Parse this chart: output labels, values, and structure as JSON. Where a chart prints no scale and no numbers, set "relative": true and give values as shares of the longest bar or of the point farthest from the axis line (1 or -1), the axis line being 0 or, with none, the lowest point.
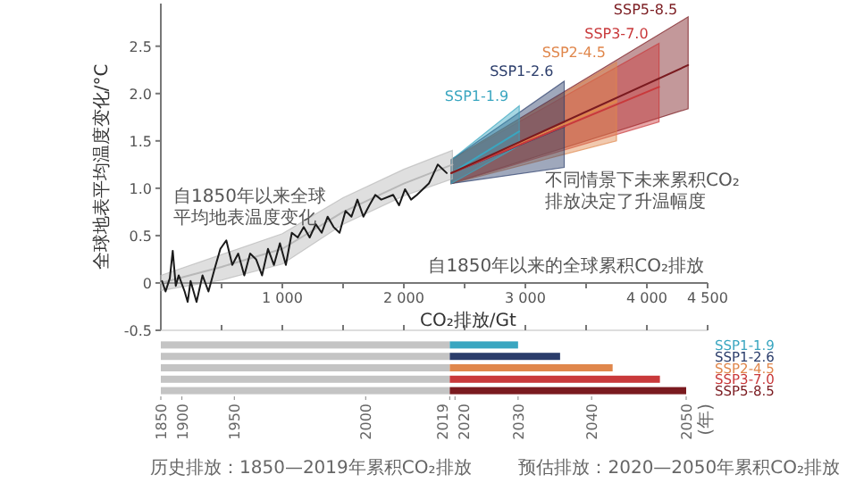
{
  "chart_data": [
    {
      "type": "line",
      "xlabel": "CO₂排放/Gt",
      "ylabel": "全球地表平均温度变化/°C",
      "xlim": [
        0,
        4500
      ],
      "ylim": [
        -0.5,
        2.95
      ],
      "xticks": [
        {
          "value": 500,
          "label": null
        },
        {
          "value": 1000,
          "label": "1 000"
        },
        {
          "value": 1500,
          "label": null
        },
        {
          "value": 2000,
          "label": "2 000"
        },
        {
          "value": 2500,
          "label": null
        },
        {
          "value": 3000,
          "label": "3 000"
        },
        {
          "value": 3500,
          "label": null
        },
        {
          "value": 4000,
          "label": "4 000"
        },
        {
          "value": 4500,
          "label": "4 500"
        }
      ],
      "yticks": [
        {
          "value": -0.5,
          "label": "-0.5"
        },
        0,
        {
          "value": 0.5,
          "label": "0.5"
        },
        {
          "value": 1,
          "label": "1.0"
        },
        {
          "value": 1.5,
          "label": "1.5"
        },
        {
          "value": 2,
          "label": "2.0"
        },
        {
          "value": 2.5,
          "label": "2.5"
        }
      ],
      "grid": false,
      "legend": false,
      "annotations": [
        "自1850年以来全球",
        "平均地表温度变化",
        "不同情景下未来累积CO₂",
        "排放决定了升温幅度",
        "自1850年以来的全球累积CO₂排放"
      ],
      "series": [
        {
          "color": "#b8b8b8",
          "x": [
            0,
            500,
            1000,
            1500,
            2000,
            2400
          ],
          "values": [
            0,
            0.17,
            0.36,
            0.75,
            1.05,
            1.25
          ],
          "lower": [
            -0.08,
            0.03,
            0.2,
            0.62,
            0.92,
            1.1
          ],
          "upper": [
            0.08,
            0.3,
            0.52,
            0.9,
            1.2,
            1.4
          ]
        },
        {
          "color": "#1a1a1a",
          "x": [
            10,
            39,
            74,
            98,
            123,
            147,
            196,
            221,
            245,
            294,
            343,
            392,
            441,
            490,
            539,
            588,
            637,
            687,
            735,
            784,
            833,
            882,
            931,
            980,
            1029,
            1078,
            1127,
            1176,
            1225,
            1275,
            1324,
            1373,
            1422,
            1471,
            1520,
            1569,
            1618,
            1667,
            1716,
            1765,
            1814,
            1912,
            1961,
            2010,
            2059,
            2108,
            2206,
            2279,
            2353
          ],
          "values": [
            0.02,
            -0.09,
            0.05,
            0.34,
            -0.03,
            0.08,
            -0.09,
            -0.2,
            0.02,
            -0.2,
            0.08,
            -0.09,
            0.14,
            0.36,
            0.45,
            0.19,
            0.31,
            0.08,
            0.31,
            0.25,
            0.08,
            0.36,
            0.19,
            0.42,
            0.19,
            0.53,
            0.48,
            0.59,
            0.48,
            0.62,
            0.53,
            0.7,
            0.59,
            0.53,
            0.76,
            0.7,
            0.88,
            0.7,
            0.82,
            0.93,
            0.88,
            0.93,
            0.82,
            0.99,
            0.88,
            0.93,
            1.05,
            1.25,
            1.16
          ]
        },
        {
          "name": "SSP1-1.9",
          "color": "#3aa6c0",
          "x": [
            2390,
            2950
          ],
          "values": [
            1.16,
            1.6
          ],
          "lower": [
            1.05,
            1.45
          ],
          "upper": [
            1.3,
            1.87
          ]
        },
        {
          "name": "SSP1-2.6",
          "color": "#2b3d6b",
          "x": [
            2390,
            3320
          ],
          "values": [
            1.16,
            1.65
          ],
          "lower": [
            1.05,
            1.22
          ],
          "upper": [
            1.3,
            2.13
          ]
        },
        {
          "name": "SSP2-4.5",
          "color": "#e0874c",
          "x": [
            2390,
            3750
          ],
          "values": [
            1.16,
            1.92
          ],
          "lower": [
            1.05,
            1.5
          ],
          "upper": [
            1.3,
            2.33
          ]
        },
        {
          "name": "SSP3-7.0",
          "color": "#c9393b",
          "x": [
            2390,
            4100
          ],
          "values": [
            1.16,
            2.07
          ],
          "lower": [
            1.05,
            1.7
          ],
          "upper": [
            1.3,
            2.53
          ]
        },
        {
          "name": "SSP5-8.5",
          "color": "#7a1a1f",
          "x": [
            2390,
            4340
          ],
          "values": [
            1.16,
            2.3
          ],
          "lower": [
            1.05,
            1.84
          ],
          "upper": [
            1.3,
            2.81
          ]
        }
      ]
    },
    {
      "type": "bar",
      "orientation": "horizontal",
      "stacked": true,
      "relative": true,
      "categories": [
        "SSP1-1.9",
        "SSP1-2.6",
        "SSP2-4.5",
        "SSP3-7.0",
        "SSP5-8.5"
      ],
      "annotations": [
        "1850",
        "1900",
        "1950",
        "2000",
        "2019",
        "2020",
        "2030",
        "2040",
        "2050",
        "(年)",
        "历史排放：1850—2019年累积CO₂排放",
        "预估排放：2020—2050年累积CO₂排放"
      ],
      "series": [
        {
          "color": "#c4c4c4",
          "values": [
            0.55,
            0.55,
            0.55,
            0.55,
            0.55
          ]
        },
        {
          "colors": [
            "#3aa6c0",
            "#2b3d6b",
            "#e0874c",
            "#c9393b",
            "#7a1a1f"
          ],
          "values": [
            0.13,
            0.21,
            0.31,
            0.4,
            0.45
          ]
        }
      ]
    }
  ]
}
